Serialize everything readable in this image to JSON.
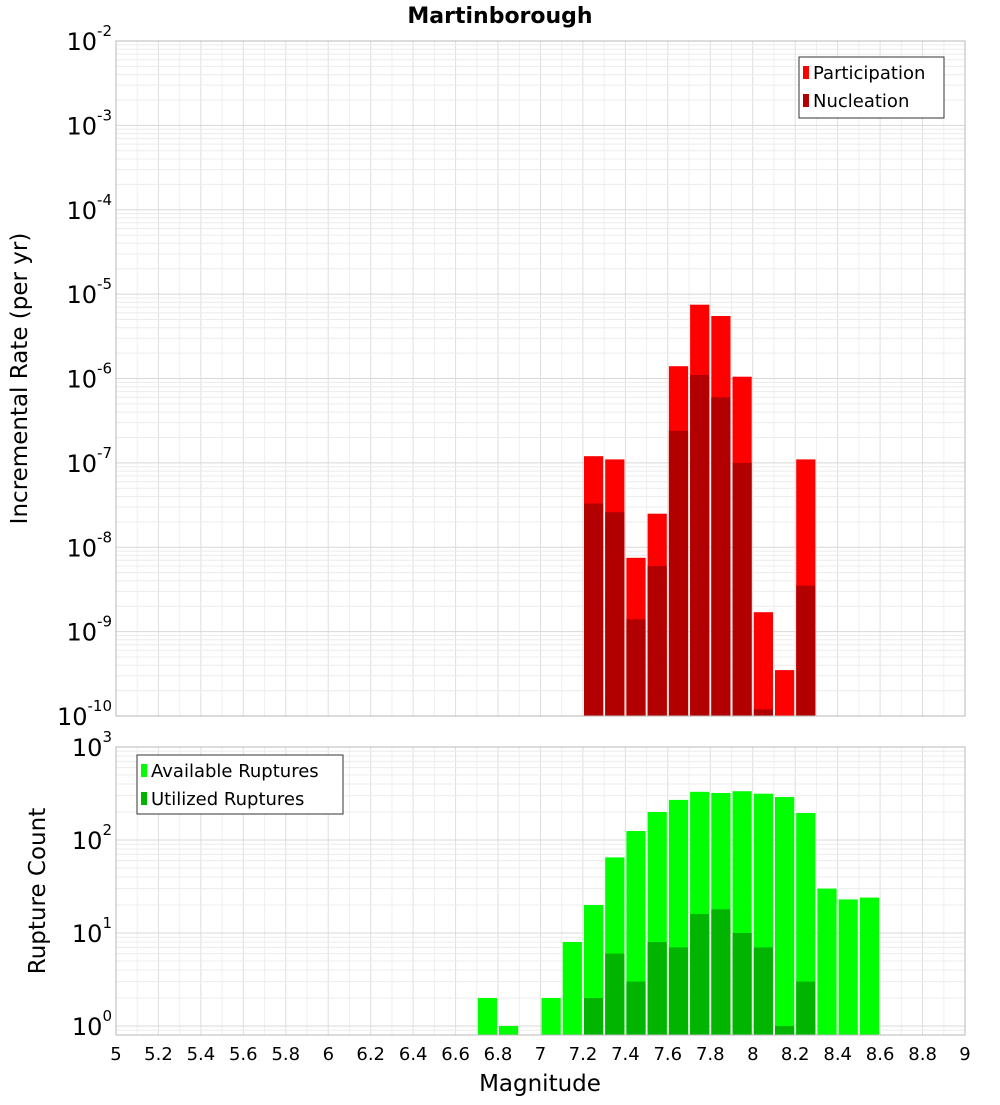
{
  "chart_data": [
    {
      "type": "bar",
      "title": "Martinborough",
      "xlabel": "",
      "ylabel": "Incremental Rate (per yr)",
      "yscale": "log",
      "ylim": [
        1e-10,
        0.01
      ],
      "xlim": [
        5,
        9
      ],
      "grid": true,
      "legend_position": "top-right",
      "bar_width": 0.1,
      "y_tick_labels": [
        {
          "base": "10",
          "exp": "-2",
          "value": 0.01
        },
        {
          "base": "10",
          "exp": "-3",
          "value": 0.001
        },
        {
          "base": "10",
          "exp": "-4",
          "value": 0.0001
        },
        {
          "base": "10",
          "exp": "-5",
          "value": 1e-05
        },
        {
          "base": "10",
          "exp": "-6",
          "value": 1e-06
        },
        {
          "base": "10",
          "exp": "-7",
          "value": 1e-07
        },
        {
          "base": "10",
          "exp": "-8",
          "value": 1e-08
        },
        {
          "base": "10",
          "exp": "-9",
          "value": 1e-09
        },
        {
          "base": "10",
          "exp": "-10",
          "value": 1e-10
        }
      ],
      "series": [
        {
          "name": "Participation",
          "color": "#ff0000",
          "x": [
            7.25,
            7.35,
            7.45,
            7.55,
            7.65,
            7.75,
            7.85,
            7.95,
            8.05,
            8.15,
            8.25
          ],
          "values": [
            1.2e-07,
            1.1e-07,
            7.5e-09,
            2.5e-08,
            1.4e-06,
            7.5e-06,
            5.5e-06,
            1.05e-06,
            1.7e-09,
            3.5e-10,
            1.1e-07
          ]
        },
        {
          "name": "Nucleation",
          "color": "#b20000",
          "x": [
            7.25,
            7.35,
            7.45,
            7.55,
            7.65,
            7.75,
            7.85,
            7.95,
            8.05,
            8.15,
            8.25
          ],
          "values": [
            3.3e-08,
            2.6e-08,
            1.4e-09,
            6e-09,
            2.4e-07,
            1.1e-06,
            6e-07,
            1e-07,
            1.2e-10,
            null,
            3.5e-09
          ]
        }
      ]
    },
    {
      "type": "bar",
      "title": "",
      "xlabel": "Magnitude",
      "ylabel": "Rupture Count",
      "yscale": "log",
      "ylim": [
        0.8,
        1000
      ],
      "xlim": [
        5,
        9
      ],
      "grid": true,
      "legend_position": "top-left",
      "bar_width": 0.1,
      "categories": [
        "5",
        "5.2",
        "5.4",
        "5.6",
        "5.8",
        "6",
        "6.2",
        "6.4",
        "6.6",
        "6.8",
        "7",
        "7.2",
        "7.4",
        "7.6",
        "7.8",
        "8",
        "8.2",
        "8.4",
        "8.6",
        "8.8",
        "9"
      ],
      "y_tick_labels": [
        {
          "base": "10",
          "exp": "3",
          "value": 1000
        },
        {
          "base": "10",
          "exp": "2",
          "value": 100
        },
        {
          "base": "10",
          "exp": "1",
          "value": 10
        },
        {
          "base": "10",
          "exp": "0",
          "value": 1
        }
      ],
      "series": [
        {
          "name": "Available Ruptures",
          "color": "#00ff00",
          "x": [
            6.75,
            6.85,
            7.05,
            7.15,
            7.25,
            7.35,
            7.45,
            7.55,
            7.65,
            7.75,
            7.85,
            7.95,
            8.05,
            8.15,
            8.25,
            8.35,
            8.45,
            8.55
          ],
          "values": [
            2,
            1,
            2,
            8,
            20,
            65,
            125,
            200,
            270,
            330,
            320,
            335,
            315,
            290,
            195,
            30,
            23,
            24
          ]
        },
        {
          "name": "Utilized Ruptures",
          "color": "#00b400",
          "x": [
            7.25,
            7.35,
            7.45,
            7.55,
            7.65,
            7.75,
            7.85,
            7.95,
            8.05,
            8.15,
            8.25
          ],
          "values": [
            2,
            6,
            3,
            8,
            7,
            16,
            18,
            10,
            7,
            1,
            3
          ]
        }
      ]
    }
  ]
}
